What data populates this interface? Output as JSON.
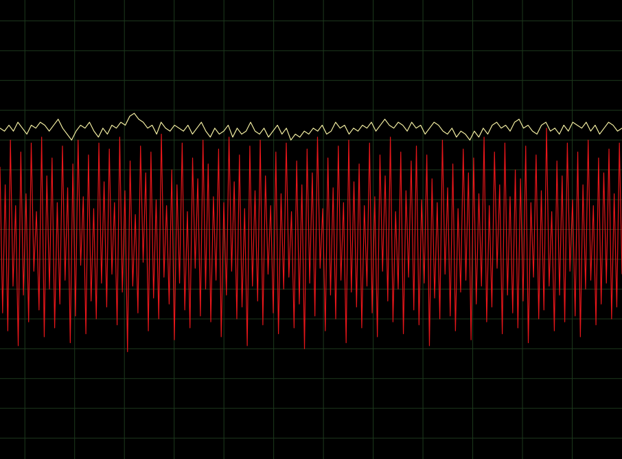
{
  "chart_data": {
    "type": "line",
    "xlim": [
      0,
      12.5
    ],
    "xticks": [
      0.5,
      1.5,
      2.5,
      3.5,
      4.5,
      5.5,
      6.5,
      7.5,
      8.5,
      9.5,
      10.5,
      11.5
    ],
    "ylim": [
      -7.7,
      7.7
    ],
    "yticks": [
      -7,
      -6,
      -5,
      -4,
      -3,
      -2,
      -1,
      0,
      1,
      2,
      3,
      4,
      5,
      6,
      7
    ],
    "grid": true,
    "grid_color": "#1d3a1d",
    "background": "#000000",
    "series": [
      {
        "color": "#e8161a",
        "values": [
          2.1,
          -2.8,
          1.5,
          -3.4,
          3.0,
          -1.9,
          0.8,
          -3.9,
          2.6,
          -2.2,
          1.2,
          -3.1,
          2.9,
          -1.4,
          0.6,
          -2.7,
          3.1,
          -3.6,
          1.8,
          -2.0,
          2.4,
          -3.3,
          0.9,
          -2.5,
          2.8,
          -1.7,
          1.4,
          -3.8,
          2.2,
          -2.9,
          3.0,
          -1.2,
          1.1,
          -3.5,
          2.5,
          -2.4,
          0.7,
          -3.0,
          2.9,
          -1.8,
          1.6,
          -2.6,
          2.7,
          -1.5,
          0.9,
          -3.2,
          3.1,
          -2.1,
          1.3,
          -4.1,
          2.3,
          -1.9,
          0.5,
          -2.8,
          2.8,
          -1.1,
          1.9,
          -3.4,
          2.6,
          -2.3,
          1.0,
          -3.0,
          3.2,
          -1.6,
          0.8,
          -2.5,
          2.0,
          -3.7,
          1.5,
          -1.8,
          2.9,
          -2.7,
          0.6,
          -3.3,
          2.4,
          -1.3,
          1.7,
          -2.9,
          3.0,
          -2.0,
          2.2,
          -3.1,
          1.1,
          -1.7,
          2.7,
          -3.6,
          0.9,
          -2.2,
          3.1,
          -1.4,
          1.6,
          -3.0,
          2.5,
          -2.6,
          0.7,
          -3.9,
          2.8,
          -1.9,
          1.3,
          -2.4,
          3.0,
          -3.2,
          1.8,
          -1.5,
          0.8,
          -2.8,
          2.6,
          -3.5,
          1.2,
          -2.0,
          2.9,
          -1.6,
          0.6,
          -3.3,
          2.3,
          -2.5,
          1.5,
          -4.0,
          2.7,
          -1.8,
          1.9,
          -2.9,
          3.1,
          -1.3,
          0.7,
          -3.4,
          2.4,
          -2.2,
          1.4,
          -3.0,
          2.8,
          -1.7,
          0.9,
          -3.8,
          3.0,
          -2.1,
          1.6,
          -2.6,
          2.2,
          -3.3,
          0.8,
          -1.9,
          2.9,
          -2.8,
          1.1,
          -3.6,
          2.5,
          -1.4,
          1.8,
          -2.4,
          3.1,
          -3.1,
          0.6,
          -2.0,
          2.6,
          -3.5,
          1.3,
          -1.6,
          2.3,
          -2.7,
          2.8,
          -3.2,
          1.0,
          -1.8,
          2.5,
          -3.9,
          1.7,
          -2.3,
          0.9,
          -3.0,
          3.0,
          -1.5,
          1.4,
          -2.9,
          2.2,
          -3.4,
          0.7,
          -2.1,
          2.7,
          -1.7,
          1.9,
          -3.7,
          2.4,
          -2.5,
          1.2,
          -1.9,
          3.1,
          -3.1,
          0.8,
          -2.6,
          2.6,
          -1.3,
          1.5,
          -3.5,
          2.9,
          -2.2,
          1.1,
          -2.8,
          2.0,
          -3.3,
          1.7,
          -2.4,
          2.8,
          -3.8,
          0.9,
          -1.6,
          2.5,
          -3.0,
          1.3,
          -2.7,
          3.4,
          -1.9,
          0.6,
          -3.4,
          2.3,
          -2.2,
          1.8,
          -3.1,
          2.9,
          -1.4,
          1.0,
          -2.9,
          2.6,
          -3.6,
          1.5,
          -2.0,
          3.0,
          -1.7,
          0.8,
          -3.2,
          2.4,
          -2.5,
          1.9,
          -1.8,
          2.7,
          -3.0,
          1.2,
          -2.6,
          2.9,
          -1.5
        ]
      },
      {
        "color": "#f3eea2",
        "values": [
          3.4,
          3.3,
          3.5,
          3.3,
          3.6,
          3.4,
          3.2,
          3.5,
          3.4,
          3.6,
          3.5,
          3.3,
          3.5,
          3.7,
          3.4,
          3.2,
          3.0,
          3.3,
          3.5,
          3.4,
          3.6,
          3.3,
          3.1,
          3.4,
          3.2,
          3.5,
          3.4,
          3.6,
          3.5,
          3.8,
          3.9,
          3.7,
          3.6,
          3.4,
          3.5,
          3.2,
          3.6,
          3.4,
          3.3,
          3.5,
          3.4,
          3.3,
          3.5,
          3.2,
          3.4,
          3.6,
          3.3,
          3.1,
          3.4,
          3.2,
          3.3,
          3.5,
          3.1,
          3.4,
          3.2,
          3.3,
          3.6,
          3.3,
          3.2,
          3.4,
          3.1,
          3.3,
          3.5,
          3.2,
          3.4,
          3.0,
          3.2,
          3.1,
          3.3,
          3.2,
          3.4,
          3.3,
          3.5,
          3.2,
          3.3,
          3.6,
          3.4,
          3.5,
          3.2,
          3.4,
          3.3,
          3.5,
          3.4,
          3.6,
          3.3,
          3.5,
          3.7,
          3.5,
          3.4,
          3.6,
          3.5,
          3.3,
          3.6,
          3.4,
          3.5,
          3.2,
          3.4,
          3.6,
          3.5,
          3.3,
          3.2,
          3.4,
          3.1,
          3.3,
          3.2,
          3.0,
          3.3,
          3.1,
          3.4,
          3.2,
          3.5,
          3.6,
          3.4,
          3.5,
          3.3,
          3.6,
          3.7,
          3.4,
          3.5,
          3.3,
          3.2,
          3.5,
          3.6,
          3.3,
          3.4,
          3.2,
          3.5,
          3.3,
          3.6,
          3.5,
          3.4,
          3.6,
          3.3,
          3.5,
          3.2,
          3.4,
          3.6,
          3.5,
          3.3,
          3.4
        ]
      }
    ]
  }
}
